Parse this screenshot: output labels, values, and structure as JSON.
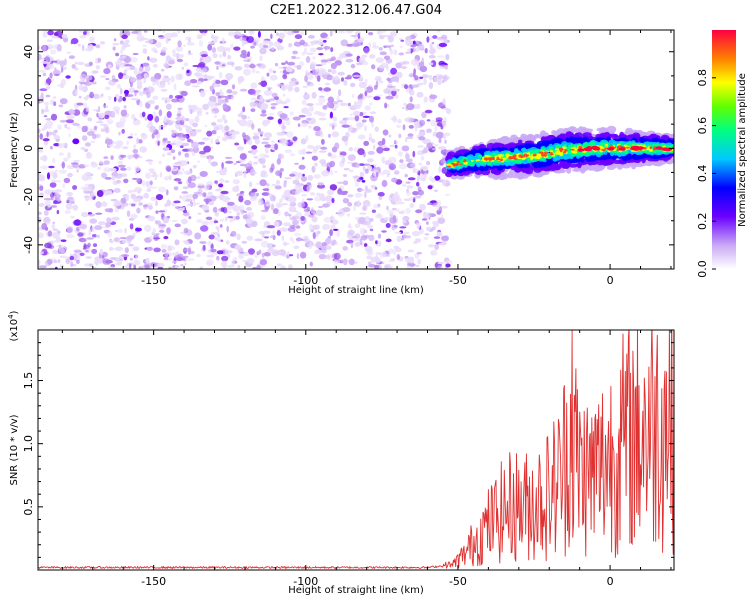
{
  "title": "C2E1.2022.312.06.47.G04",
  "chart_data": [
    {
      "type": "heatmap",
      "xlabel": "Height of straight line (km)",
      "ylabel": "Frequency (Hz)",
      "xlim": [
        -188,
        21
      ],
      "ylim": [
        -50,
        49
      ],
      "xticks": [
        -150,
        -100,
        -50,
        0
      ],
      "yticks": [
        -40,
        -20,
        0,
        20,
        40
      ],
      "signal_start_km": -53,
      "noise_region_end_km": -55,
      "signal_track": [
        {
          "x": -53,
          "y": -7
        },
        {
          "x": -45,
          "y": -5
        },
        {
          "x": -35,
          "y": -4
        },
        {
          "x": -25,
          "y": -3
        },
        {
          "x": -15,
          "y": -1
        },
        {
          "x": -5,
          "y": 0
        },
        {
          "x": 5,
          "y": 0
        },
        {
          "x": 20,
          "y": 0
        }
      ],
      "colorbar": {
        "label": "Normalized spectral amplitude",
        "ticks": [
          "0.0",
          "0.2",
          "0.4",
          "0.6",
          "0.8"
        ],
        "range": [
          0,
          1
        ]
      }
    },
    {
      "type": "line",
      "xlabel": "Height of straight line (km)",
      "ylabel": "SNR (10 * v/v)",
      "multiplier": "(x10^4)",
      "multiplier_base": "(x10",
      "multiplier_exp": "4",
      "multiplier_close": ")",
      "xlim": [
        -188,
        21
      ],
      "ylim": [
        0,
        1.9
      ],
      "xticks": [
        -150,
        -100,
        -50,
        0
      ],
      "yticks": [
        "0.5",
        "1.0",
        "1.5"
      ],
      "series": [
        {
          "color": "#e03030",
          "points": [
            {
              "x": -188,
              "y": 0.02
            },
            {
              "x": -60,
              "y": 0.02
            },
            {
              "x": -52,
              "y": 0.04
            },
            {
              "x": -48,
              "y": 0.12
            },
            {
              "x": -44,
              "y": 0.25
            },
            {
              "x": -40,
              "y": 0.35
            },
            {
              "x": -36,
              "y": 0.45
            },
            {
              "x": -32,
              "y": 0.52
            },
            {
              "x": -28,
              "y": 0.5
            },
            {
              "x": -24,
              "y": 0.55
            },
            {
              "x": -20,
              "y": 0.6
            },
            {
              "x": -16,
              "y": 0.75
            },
            {
              "x": -13,
              "y": 1.1
            },
            {
              "x": -10,
              "y": 0.8
            },
            {
              "x": -6,
              "y": 0.75
            },
            {
              "x": -2,
              "y": 0.85
            },
            {
              "x": 2,
              "y": 0.95
            },
            {
              "x": 6,
              "y": 1.05
            },
            {
              "x": 10,
              "y": 1.1
            },
            {
              "x": 14,
              "y": 1.15
            },
            {
              "x": 18,
              "y": 1.2
            },
            {
              "x": 21,
              "y": 1.22
            }
          ]
        }
      ]
    }
  ]
}
